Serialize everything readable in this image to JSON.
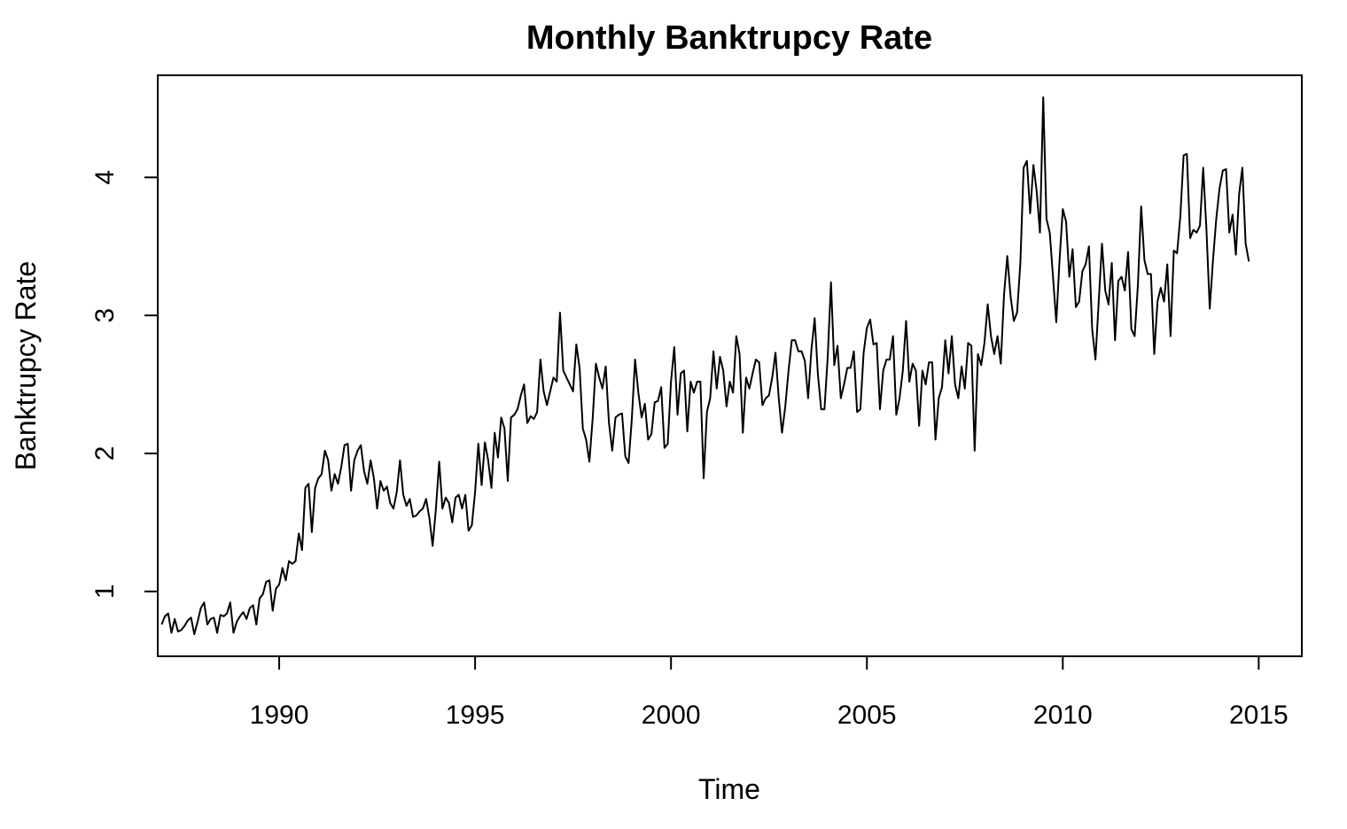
{
  "chart_data": {
    "type": "line",
    "title": "Monthly Banktrupcy Rate",
    "xlabel": "Time",
    "ylabel": "Banktrupcy Rate",
    "x_ticks": [
      1990,
      1995,
      2000,
      2005,
      2010,
      2015
    ],
    "y_ticks": [
      1,
      2,
      3,
      4
    ],
    "xlim": [
      1986.9,
      2016.1
    ],
    "ylim": [
      0.53,
      4.74
    ],
    "grid": false,
    "x_start": 1987.0,
    "x_step": 0.0833333,
    "series": [
      {
        "values": [
          0.76,
          0.82,
          0.84,
          0.7,
          0.8,
          0.71,
          0.72,
          0.75,
          0.79,
          0.81,
          0.69,
          0.78,
          0.88,
          0.92,
          0.76,
          0.8,
          0.81,
          0.7,
          0.83,
          0.82,
          0.84,
          0.92,
          0.7,
          0.78,
          0.82,
          0.85,
          0.8,
          0.88,
          0.9,
          0.76,
          0.95,
          0.98,
          1.07,
          1.08,
          0.86,
          1.02,
          1.05,
          1.17,
          1.08,
          1.22,
          1.2,
          1.22,
          1.42,
          1.3,
          1.75,
          1.78,
          1.43,
          1.75,
          1.82,
          1.85,
          2.02,
          1.95,
          1.73,
          1.85,
          1.78,
          1.9,
          2.06,
          2.07,
          1.73,
          1.95,
          2.02,
          2.06,
          1.87,
          1.78,
          1.95,
          1.82,
          1.6,
          1.8,
          1.73,
          1.76,
          1.64,
          1.6,
          1.72,
          1.95,
          1.7,
          1.62,
          1.67,
          1.54,
          1.55,
          1.58,
          1.6,
          1.67,
          1.53,
          1.33,
          1.6,
          1.94,
          1.6,
          1.68,
          1.64,
          1.5,
          1.68,
          1.7,
          1.6,
          1.7,
          1.44,
          1.48,
          1.72,
          2.07,
          1.77,
          2.08,
          1.95,
          1.75,
          2.15,
          1.97,
          2.26,
          2.18,
          1.8,
          2.26,
          2.28,
          2.32,
          2.42,
          2.5,
          2.22,
          2.27,
          2.25,
          2.3,
          2.68,
          2.45,
          2.35,
          2.45,
          2.55,
          2.52,
          3.02,
          2.6,
          2.55,
          2.5,
          2.45,
          2.79,
          2.62,
          2.18,
          2.1,
          1.94,
          2.25,
          2.65,
          2.55,
          2.47,
          2.63,
          2.22,
          2.02,
          2.26,
          2.28,
          2.29,
          1.98,
          1.93,
          2.25,
          2.68,
          2.44,
          2.26,
          2.36,
          2.1,
          2.14,
          2.37,
          2.38,
          2.48,
          2.04,
          2.07,
          2.52,
          2.77,
          2.28,
          2.58,
          2.6,
          2.16,
          2.52,
          2.44,
          2.52,
          2.52,
          1.82,
          2.3,
          2.4,
          2.74,
          2.47,
          2.7,
          2.6,
          2.34,
          2.52,
          2.44,
          2.85,
          2.72,
          2.15,
          2.55,
          2.47,
          2.58,
          2.68,
          2.66,
          2.35,
          2.4,
          2.42,
          2.55,
          2.73,
          2.4,
          2.15,
          2.34,
          2.6,
          2.82,
          2.82,
          2.74,
          2.74,
          2.67,
          2.4,
          2.75,
          2.98,
          2.57,
          2.32,
          2.32,
          2.7,
          3.24,
          2.64,
          2.78,
          2.4,
          2.5,
          2.62,
          2.62,
          2.74,
          2.3,
          2.32,
          2.73,
          2.91,
          2.97,
          2.79,
          2.8,
          2.32,
          2.6,
          2.68,
          2.68,
          2.85,
          2.28,
          2.4,
          2.6,
          2.96,
          2.52,
          2.65,
          2.6,
          2.2,
          2.6,
          2.5,
          2.66,
          2.66,
          2.1,
          2.4,
          2.48,
          2.82,
          2.58,
          2.85,
          2.5,
          2.4,
          2.63,
          2.47,
          2.8,
          2.78,
          2.02,
          2.72,
          2.64,
          2.8,
          3.08,
          2.85,
          2.72,
          2.85,
          2.65,
          3.15,
          3.43,
          3.14,
          2.96,
          3.02,
          3.38,
          4.07,
          4.12,
          3.74,
          4.09,
          3.9,
          3.6,
          4.58,
          3.7,
          3.6,
          3.28,
          2.95,
          3.4,
          3.77,
          3.68,
          3.28,
          3.48,
          3.06,
          3.1,
          3.32,
          3.37,
          3.5,
          2.9,
          2.68,
          3.1,
          3.52,
          3.18,
          3.08,
          3.38,
          2.82,
          3.25,
          3.28,
          3.18,
          3.46,
          2.9,
          2.85,
          3.22,
          3.79,
          3.4,
          3.3,
          3.3,
          2.72,
          3.1,
          3.2,
          3.1,
          3.37,
          2.85,
          3.47,
          3.45,
          3.72,
          4.16,
          4.17,
          3.56,
          3.62,
          3.6,
          3.65,
          4.07,
          3.62,
          3.05,
          3.4,
          3.7,
          3.92,
          4.05,
          4.06,
          3.6,
          3.73,
          3.44,
          3.88,
          4.07,
          3.52,
          3.39
        ]
      }
    ]
  }
}
